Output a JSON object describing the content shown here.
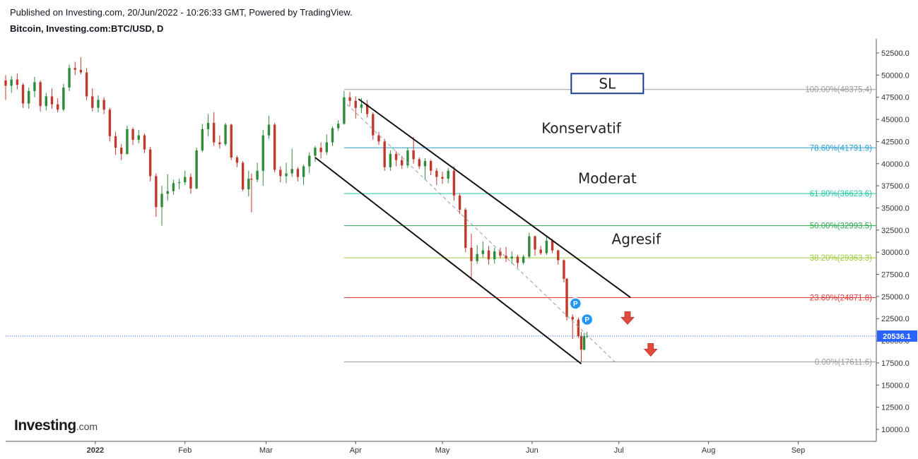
{
  "header": {
    "published": "Published on Investing.com, 20/Jun/2022 - 10:26:33 GMT, Powered by TradingView.",
    "symbol": "Bitcoin, Investing.com:BTC/USD, D"
  },
  "logo": {
    "brand": "Investing",
    "suffix": ".com"
  },
  "colors": {
    "up": "#2e8b3a",
    "down": "#c0392b",
    "axis": "#555555",
    "price_badge": "#2962ff",
    "sl_border": "#1a3a8f",
    "arrow": "#e04a3a",
    "marker": "#2196f3"
  },
  "chart_data": {
    "type": "candlestick",
    "y_axis": {
      "min": 8000,
      "max": 54000,
      "ticks": [
        10000,
        12500,
        15000,
        17500,
        20000,
        22500,
        25000,
        27500,
        30000,
        32500,
        35000,
        37500,
        40000,
        42500,
        45000,
        47500,
        50000,
        52500
      ],
      "tick_labels": [
        "10000.0",
        "12500.0",
        "15000.0",
        "17500.0",
        "20000.0",
        "22500.0",
        "25000.0",
        "27500.0",
        "30000.0",
        "32500.0",
        "35000.0",
        "37500.0",
        "40000.0",
        "42500.0",
        "45000.0",
        "47500.0",
        "50000.0",
        "52500.0"
      ]
    },
    "x_axis": {
      "start": "2021-12-01",
      "end": "2022-09-28",
      "ticks": [
        {
          "date": "2022-01-01",
          "label": "2022",
          "bold": true
        },
        {
          "date": "2022-02-01",
          "label": "Feb"
        },
        {
          "date": "2022-03-01",
          "label": "Mar"
        },
        {
          "date": "2022-04-01",
          "label": "Apr"
        },
        {
          "date": "2022-05-01",
          "label": "May"
        },
        {
          "date": "2022-06-01",
          "label": "Jun"
        },
        {
          "date": "2022-07-01",
          "label": "Jul"
        },
        {
          "date": "2022-08-01",
          "label": "Aug"
        },
        {
          "date": "2022-09-01",
          "label": "Sep"
        }
      ]
    },
    "current_price": {
      "value": 20536.1,
      "label": "20536.1"
    },
    "fib_levels": [
      {
        "ratio": 100.0,
        "price": 48375.4,
        "label": "100.00%(48375.4)",
        "color": "#999999"
      },
      {
        "ratio": 78.6,
        "price": 41791.9,
        "label": "78.60%(41791.9)",
        "color": "#2a9fd6"
      },
      {
        "ratio": 61.8,
        "price": 36623.6,
        "label": "61.80%(36623.6)",
        "color": "#26c6a8"
      },
      {
        "ratio": 50.0,
        "price": 32993.5,
        "label": "50.00%(32993.5)",
        "color": "#2ea84f"
      },
      {
        "ratio": 38.2,
        "price": 29363.3,
        "label": "38.20%(29363.3)",
        "color": "#9ccc3a"
      },
      {
        "ratio": 23.6,
        "price": 24871.8,
        "label": "23.60%(24871.8)",
        "color": "#e03c3c"
      },
      {
        "ratio": 0.0,
        "price": 17611.6,
        "label": "0.00%(17611.6)",
        "color": "#999999"
      }
    ],
    "fib_range": {
      "start": "2022-03-28",
      "end": "2022-06-29"
    },
    "channel": {
      "upper": [
        {
          "date": "2022-04-02",
          "price": 47300
        },
        {
          "date": "2022-07-05",
          "price": 24900
        }
      ],
      "lower": [
        {
          "date": "2022-03-18",
          "price": 40700
        },
        {
          "date": "2022-06-18",
          "price": 17400
        }
      ],
      "mid": [
        {
          "date": "2022-03-29",
          "price": 46700
        },
        {
          "date": "2022-06-30",
          "price": 17500
        }
      ]
    },
    "annotations": [
      {
        "text": "SL",
        "date": "2022-06-27",
        "price": 49050,
        "boxed": true
      },
      {
        "text": "Konservatif",
        "date": "2022-06-18",
        "price": 44000
      },
      {
        "text": "Moderat",
        "date": "2022-06-27",
        "price": 38350
      },
      {
        "text": "Agresif",
        "date": "2022-07-07",
        "price": 31500
      }
    ],
    "markers": [
      {
        "label": "P",
        "date": "2022-06-16",
        "price": 24200
      },
      {
        "label": "P",
        "date": "2022-06-20",
        "price": 22400
      }
    ],
    "arrows": [
      {
        "date": "2022-07-04",
        "price": 22500
      },
      {
        "date": "2022-07-12",
        "price": 18900
      }
    ],
    "candles": [
      {
        "date": "2021-12-01",
        "o": 49400,
        "h": 50000,
        "l": 47200,
        "c": 48800
      },
      {
        "date": "2021-12-03",
        "o": 48800,
        "h": 49900,
        "l": 48000,
        "c": 49500
      },
      {
        "date": "2021-12-05",
        "o": 49500,
        "h": 50200,
        "l": 48400,
        "c": 48900
      },
      {
        "date": "2021-12-07",
        "o": 48900,
        "h": 49100,
        "l": 46300,
        "c": 46800
      },
      {
        "date": "2021-12-09",
        "o": 46800,
        "h": 48600,
        "l": 46200,
        "c": 48200
      },
      {
        "date": "2021-12-11",
        "o": 48200,
        "h": 49800,
        "l": 47500,
        "c": 49200
      },
      {
        "date": "2021-12-13",
        "o": 49200,
        "h": 49400,
        "l": 45900,
        "c": 46500
      },
      {
        "date": "2021-12-15",
        "o": 46500,
        "h": 48000,
        "l": 46000,
        "c": 47600
      },
      {
        "date": "2021-12-17",
        "o": 47600,
        "h": 48500,
        "l": 46200,
        "c": 46700
      },
      {
        "date": "2021-12-19",
        "o": 46700,
        "h": 47400,
        "l": 45800,
        "c": 46100
      },
      {
        "date": "2021-12-21",
        "o": 46100,
        "h": 49000,
        "l": 45900,
        "c": 48600
      },
      {
        "date": "2021-12-23",
        "o": 48600,
        "h": 51200,
        "l": 48200,
        "c": 50800
      },
      {
        "date": "2021-12-25",
        "o": 50800,
        "h": 51500,
        "l": 50000,
        "c": 50600
      },
      {
        "date": "2021-12-27",
        "o": 50600,
        "h": 52000,
        "l": 50100,
        "c": 50300
      },
      {
        "date": "2021-12-29",
        "o": 50300,
        "h": 50800,
        "l": 47200,
        "c": 47600
      },
      {
        "date": "2021-12-31",
        "o": 47600,
        "h": 48500,
        "l": 45900,
        "c": 46300
      },
      {
        "date": "2022-01-02",
        "o": 46300,
        "h": 47700,
        "l": 45800,
        "c": 47200
      },
      {
        "date": "2022-01-04",
        "o": 47200,
        "h": 47500,
        "l": 45600,
        "c": 46100
      },
      {
        "date": "2022-01-06",
        "o": 46100,
        "h": 46300,
        "l": 42500,
        "c": 43100
      },
      {
        "date": "2022-01-08",
        "o": 43100,
        "h": 43600,
        "l": 41000,
        "c": 41800
      },
      {
        "date": "2022-01-10",
        "o": 41800,
        "h": 42200,
        "l": 40400,
        "c": 41100
      },
      {
        "date": "2022-01-12",
        "o": 41100,
        "h": 44300,
        "l": 41000,
        "c": 43900
      },
      {
        "date": "2022-01-14",
        "o": 43900,
        "h": 44100,
        "l": 42100,
        "c": 42700
      },
      {
        "date": "2022-01-16",
        "o": 42700,
        "h": 43800,
        "l": 42300,
        "c": 43200
      },
      {
        "date": "2022-01-18",
        "o": 43200,
        "h": 43400,
        "l": 41200,
        "c": 41600
      },
      {
        "date": "2022-01-20",
        "o": 41600,
        "h": 41900,
        "l": 38000,
        "c": 38600
      },
      {
        "date": "2022-01-22",
        "o": 38600,
        "h": 38900,
        "l": 34000,
        "c": 35100
      },
      {
        "date": "2022-01-24",
        "o": 35100,
        "h": 37500,
        "l": 33000,
        "c": 36600
      },
      {
        "date": "2022-01-26",
        "o": 36600,
        "h": 38800,
        "l": 35800,
        "c": 36900
      },
      {
        "date": "2022-01-28",
        "o": 36900,
        "h": 38200,
        "l": 36500,
        "c": 37800
      },
      {
        "date": "2022-01-30",
        "o": 37800,
        "h": 38300,
        "l": 37100,
        "c": 37900
      },
      {
        "date": "2022-02-01",
        "o": 37900,
        "h": 39200,
        "l": 37600,
        "c": 38500
      },
      {
        "date": "2022-02-03",
        "o": 38500,
        "h": 38900,
        "l": 36600,
        "c": 37200
      },
      {
        "date": "2022-02-05",
        "o": 37200,
        "h": 41800,
        "l": 37100,
        "c": 41500
      },
      {
        "date": "2022-02-07",
        "o": 41500,
        "h": 44500,
        "l": 41300,
        "c": 43900
      },
      {
        "date": "2022-02-09",
        "o": 43900,
        "h": 45600,
        "l": 43100,
        "c": 44600
      },
      {
        "date": "2022-02-11",
        "o": 44600,
        "h": 45800,
        "l": 42000,
        "c": 42400
      },
      {
        "date": "2022-02-13",
        "o": 42400,
        "h": 43200,
        "l": 41700,
        "c": 42200
      },
      {
        "date": "2022-02-15",
        "o": 42200,
        "h": 44600,
        "l": 42000,
        "c": 44400
      },
      {
        "date": "2022-02-17",
        "o": 44400,
        "h": 44500,
        "l": 40400,
        "c": 40700
      },
      {
        "date": "2022-02-19",
        "o": 40700,
        "h": 40900,
        "l": 39600,
        "c": 40100
      },
      {
        "date": "2022-02-21",
        "o": 40100,
        "h": 40300,
        "l": 36900,
        "c": 37100
      },
      {
        "date": "2022-02-23",
        "o": 37100,
        "h": 39200,
        "l": 36300,
        "c": 38300
      },
      {
        "date": "2022-02-24",
        "o": 38300,
        "h": 38900,
        "l": 34500,
        "c": 38200
      },
      {
        "date": "2022-02-26",
        "o": 38200,
        "h": 40100,
        "l": 37900,
        "c": 39200
      },
      {
        "date": "2022-02-28",
        "o": 39200,
        "h": 43800,
        "l": 37500,
        "c": 43200
      },
      {
        "date": "2022-03-02",
        "o": 43200,
        "h": 45400,
        "l": 42800,
        "c": 44400
      },
      {
        "date": "2022-03-04",
        "o": 44400,
        "h": 44600,
        "l": 39000,
        "c": 39300
      },
      {
        "date": "2022-03-06",
        "o": 39300,
        "h": 39700,
        "l": 37900,
        "c": 38600
      },
      {
        "date": "2022-03-08",
        "o": 38600,
        "h": 40100,
        "l": 37800,
        "c": 38900
      },
      {
        "date": "2022-03-10",
        "o": 38900,
        "h": 41700,
        "l": 38500,
        "c": 39400
      },
      {
        "date": "2022-03-12",
        "o": 39400,
        "h": 39600,
        "l": 38000,
        "c": 38500
      },
      {
        "date": "2022-03-14",
        "o": 38500,
        "h": 39900,
        "l": 37600,
        "c": 39700
      },
      {
        "date": "2022-03-16",
        "o": 39700,
        "h": 41300,
        "l": 38900,
        "c": 40900
      },
      {
        "date": "2022-03-18",
        "o": 40900,
        "h": 42000,
        "l": 40200,
        "c": 41800
      },
      {
        "date": "2022-03-20",
        "o": 41800,
        "h": 42400,
        "l": 40600,
        "c": 41300
      },
      {
        "date": "2022-03-22",
        "o": 41300,
        "h": 43300,
        "l": 41000,
        "c": 42400
      },
      {
        "date": "2022-03-24",
        "o": 42400,
        "h": 44200,
        "l": 42000,
        "c": 44000
      },
      {
        "date": "2022-03-26",
        "o": 44000,
        "h": 44900,
        "l": 43700,
        "c": 44500
      },
      {
        "date": "2022-03-28",
        "o": 44500,
        "h": 48200,
        "l": 44400,
        "c": 47500
      },
      {
        "date": "2022-03-30",
        "o": 47500,
        "h": 48100,
        "l": 46500,
        "c": 47100
      },
      {
        "date": "2022-04-01",
        "o": 47100,
        "h": 47600,
        "l": 45100,
        "c": 46300
      },
      {
        "date": "2022-04-03",
        "o": 46300,
        "h": 47400,
        "l": 45700,
        "c": 46700
      },
      {
        "date": "2022-04-05",
        "o": 46700,
        "h": 47200,
        "l": 45200,
        "c": 45600
      },
      {
        "date": "2022-04-07",
        "o": 45600,
        "h": 45800,
        "l": 42700,
        "c": 43200
      },
      {
        "date": "2022-04-09",
        "o": 43200,
        "h": 43600,
        "l": 42100,
        "c": 42500
      },
      {
        "date": "2022-04-11",
        "o": 42500,
        "h": 42800,
        "l": 39200,
        "c": 39600
      },
      {
        "date": "2022-04-13",
        "o": 39600,
        "h": 41500,
        "l": 39200,
        "c": 41100
      },
      {
        "date": "2022-04-15",
        "o": 41100,
        "h": 41400,
        "l": 39700,
        "c": 40400
      },
      {
        "date": "2022-04-17",
        "o": 40400,
        "h": 40900,
        "l": 39400,
        "c": 39800
      },
      {
        "date": "2022-04-19",
        "o": 39800,
        "h": 41800,
        "l": 39500,
        "c": 41500
      },
      {
        "date": "2022-04-21",
        "o": 41500,
        "h": 43000,
        "l": 40000,
        "c": 40500
      },
      {
        "date": "2022-04-23",
        "o": 40500,
        "h": 40700,
        "l": 39400,
        "c": 39700
      },
      {
        "date": "2022-04-25",
        "o": 39700,
        "h": 40600,
        "l": 38200,
        "c": 40300
      },
      {
        "date": "2022-04-27",
        "o": 40300,
        "h": 40500,
        "l": 38700,
        "c": 39200
      },
      {
        "date": "2022-04-29",
        "o": 39200,
        "h": 39500,
        "l": 37600,
        "c": 38500
      },
      {
        "date": "2022-05-01",
        "o": 38500,
        "h": 39100,
        "l": 37700,
        "c": 38300
      },
      {
        "date": "2022-05-03",
        "o": 38300,
        "h": 39500,
        "l": 37800,
        "c": 39200
      },
      {
        "date": "2022-05-05",
        "o": 39200,
        "h": 39700,
        "l": 35800,
        "c": 36400
      },
      {
        "date": "2022-05-07",
        "o": 36400,
        "h": 36600,
        "l": 34300,
        "c": 34800
      },
      {
        "date": "2022-05-09",
        "o": 34800,
        "h": 35000,
        "l": 30000,
        "c": 30500
      },
      {
        "date": "2022-05-11",
        "o": 30500,
        "h": 32100,
        "l": 26800,
        "c": 29000
      },
      {
        "date": "2022-05-13",
        "o": 29000,
        "h": 30800,
        "l": 28700,
        "c": 29800
      },
      {
        "date": "2022-05-15",
        "o": 29800,
        "h": 31200,
        "l": 29400,
        "c": 30200
      },
      {
        "date": "2022-05-17",
        "o": 30200,
        "h": 30700,
        "l": 28600,
        "c": 29200
      },
      {
        "date": "2022-05-19",
        "o": 29200,
        "h": 30500,
        "l": 28700,
        "c": 30100
      },
      {
        "date": "2022-05-21",
        "o": 30100,
        "h": 30500,
        "l": 29300,
        "c": 29600
      },
      {
        "date": "2022-05-23",
        "o": 29600,
        "h": 30600,
        "l": 28900,
        "c": 29300
      },
      {
        "date": "2022-05-25",
        "o": 29300,
        "h": 30100,
        "l": 28700,
        "c": 29500
      },
      {
        "date": "2022-05-27",
        "o": 29500,
        "h": 29700,
        "l": 28300,
        "c": 28800
      },
      {
        "date": "2022-05-29",
        "o": 28800,
        "h": 29700,
        "l": 28600,
        "c": 29500
      },
      {
        "date": "2022-05-31",
        "o": 29500,
        "h": 32200,
        "l": 29300,
        "c": 31800
      },
      {
        "date": "2022-06-02",
        "o": 31800,
        "h": 31900,
        "l": 29600,
        "c": 30300
      },
      {
        "date": "2022-06-04",
        "o": 30300,
        "h": 30700,
        "l": 29700,
        "c": 29900
      },
      {
        "date": "2022-06-06",
        "o": 29900,
        "h": 31700,
        "l": 29700,
        "c": 31300
      },
      {
        "date": "2022-06-08",
        "o": 31300,
        "h": 31500,
        "l": 29900,
        "c": 30200
      },
      {
        "date": "2022-06-10",
        "o": 30200,
        "h": 30300,
        "l": 28600,
        "c": 29100
      },
      {
        "date": "2022-06-12",
        "o": 29100,
        "h": 29200,
        "l": 26600,
        "c": 27000
      },
      {
        "date": "2022-06-13",
        "o": 27000,
        "h": 27100,
        "l": 22300,
        "c": 22700
      },
      {
        "date": "2022-06-15",
        "o": 22700,
        "h": 23000,
        "l": 20200,
        "c": 22400
      },
      {
        "date": "2022-06-17",
        "o": 22400,
        "h": 22600,
        "l": 20300,
        "c": 20500
      },
      {
        "date": "2022-06-18",
        "o": 20500,
        "h": 21000,
        "l": 17600,
        "c": 19000
      },
      {
        "date": "2022-06-19",
        "o": 19000,
        "h": 20900,
        "l": 18900,
        "c": 20500
      },
      {
        "date": "2022-06-20",
        "o": 20500,
        "h": 21000,
        "l": 20300,
        "c": 20536
      }
    ]
  }
}
